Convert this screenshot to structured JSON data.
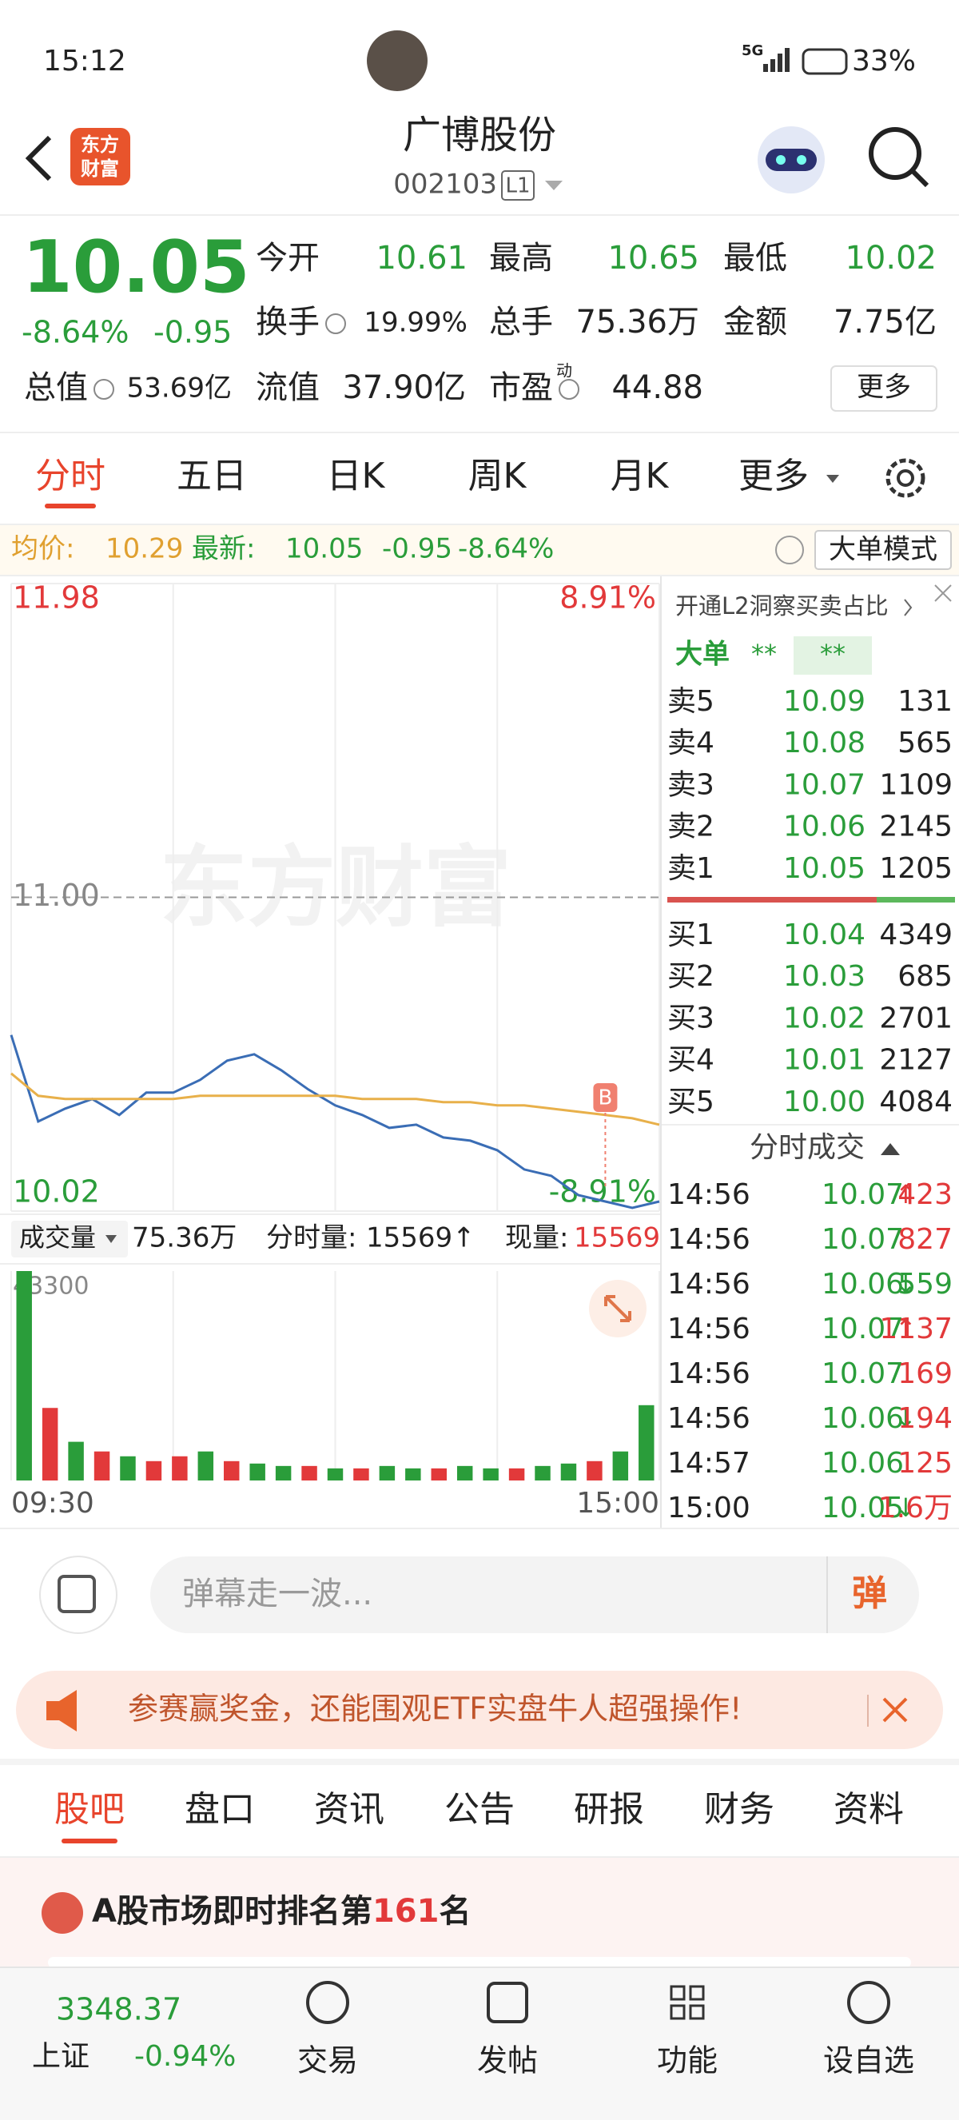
{
  "status_bar": {
    "time": "15:12",
    "network": "5G",
    "battery": "33%"
  },
  "header": {
    "logo_lines": [
      "东方",
      "财富"
    ],
    "title": "广博股份",
    "code": "002103",
    "level": "L1"
  },
  "quote": {
    "price": "10.05",
    "change_pct": "-8.64%",
    "change": "-0.95",
    "fields": [
      {
        "label": "今开",
        "value": "10.61",
        "color": "#2a9d3a"
      },
      {
        "label": "最高",
        "value": "10.65",
        "color": "#2a9d3a"
      },
      {
        "label": "最低",
        "value": "10.02",
        "color": "#2a9d3a"
      },
      {
        "label": "换手",
        "value": "19.99%"
      },
      {
        "label": "总手",
        "value": "75.36万"
      },
      {
        "label": "金额",
        "value": "7.75亿"
      },
      {
        "label": "总值",
        "value": "53.69亿"
      },
      {
        "label": "流值",
        "value": "37.90亿"
      },
      {
        "label": "市盈",
        "sup": "动",
        "value": "44.88"
      }
    ],
    "more": "更多"
  },
  "chart_tabs": [
    "分时",
    "五日",
    "日K",
    "周K",
    "月K",
    "更多"
  ],
  "info_line": {
    "avg_label": "均价:",
    "avg": "10.29",
    "latest_label": "最新:",
    "latest": "10.05",
    "change": "-0.95",
    "change_pct": "-8.64%",
    "mode": "大单模式"
  },
  "watermark": "东方财富",
  "chart_data": [
    {
      "type": "line",
      "annotation": "B",
      "series": [
        {
          "color": "#3a6db5",
          "values": [
            10.57,
            10.3,
            10.34,
            10.37,
            10.32,
            10.39,
            10.39,
            10.43,
            10.49,
            10.51,
            10.46,
            10.4,
            10.35,
            10.32,
            10.28,
            10.29,
            10.25,
            10.24,
            10.21,
            10.15,
            10.13,
            10.07,
            10.05,
            10.03,
            10.05
          ]
        },
        {
          "color": "#e8b04a",
          "values": [
            10.45,
            10.38,
            10.37,
            10.37,
            10.37,
            10.37,
            10.37,
            10.38,
            10.38,
            10.38,
            10.38,
            10.38,
            10.38,
            10.37,
            10.37,
            10.37,
            10.36,
            10.36,
            10.35,
            10.35,
            10.34,
            10.33,
            10.32,
            10.31,
            10.29
          ]
        }
      ],
      "ylim": [
        10.02,
        11.98
      ],
      "yticks": [
        11.98,
        {
          "value": 11,
          "label": "11.00"
        },
        10.02
      ],
      "y2lim": [
        -8.91,
        8.91
      ],
      "y2ticks": [
        {
          "value": 8.91,
          "label": "8.91%"
        },
        {
          "value": -8.91,
          "label": "-8.91%"
        }
      ],
      "grid": true
    },
    {
      "type": "bar",
      "categories": [
        "09:30",
        null,
        null,
        null,
        null,
        null,
        null,
        null,
        null,
        null,
        null,
        null,
        null,
        null,
        null,
        null,
        null,
        null,
        null,
        null,
        null,
        null,
        null,
        null,
        "15:00"
      ],
      "values": [
        43300,
        15000,
        8000,
        6000,
        5000,
        4000,
        5000,
        6000,
        4000,
        3500,
        3000,
        3000,
        2500,
        2500,
        3000,
        2500,
        2500,
        3000,
        2500,
        2500,
        3000,
        3500,
        4000,
        6000,
        15569
      ],
      "colors": [
        "#2a9d3a",
        "#e2393a",
        "#2a9d3a",
        "#e2393a",
        "#2a9d3a",
        "#e2393a",
        "#e2393a",
        "#2a9d3a",
        "#e2393a",
        "#2a9d3a",
        "#2a9d3a",
        "#e2393a",
        "#2a9d3a",
        "#e2393a",
        "#2a9d3a",
        "#2a9d3a",
        "#e2393a",
        "#2a9d3a",
        "#2a9d3a",
        "#e2393a",
        "#2a9d3a",
        "#2a9d3a",
        "#e2393a",
        "#2a9d3a",
        "#2a9d3a"
      ],
      "ylim": [
        0,
        43300
      ],
      "yticks": [
        43300
      ]
    }
  ],
  "volume_bar": {
    "label": "成交量",
    "total": "75.36万",
    "period_label": "分时量:",
    "period": "15569↑",
    "current_label": "现量:",
    "current": "15569"
  },
  "order_book": {
    "promo": "开通L2洞察买卖占比",
    "big_label": "大单",
    "big_a": "**",
    "big_b": "**",
    "asks": [
      {
        "label": "卖5",
        "price": "10.09",
        "volume": "131"
      },
      {
        "label": "卖4",
        "price": "10.08",
        "volume": "565"
      },
      {
        "label": "卖3",
        "price": "10.07",
        "volume": "1109"
      },
      {
        "label": "卖2",
        "price": "10.06",
        "volume": "2145"
      },
      {
        "label": "卖1",
        "price": "10.05",
        "volume": "1205"
      }
    ],
    "bids": [
      {
        "label": "买1",
        "price": "10.04",
        "volume": "4349"
      },
      {
        "label": "买2",
        "price": "10.03",
        "volume": "685"
      },
      {
        "label": "买3",
        "price": "10.02",
        "volume": "2701"
      },
      {
        "label": "买4",
        "price": "10.01",
        "volume": "2127"
      },
      {
        "label": "买5",
        "price": "10.00",
        "volume": "4084"
      }
    ]
  },
  "trades": {
    "title": "分时成交",
    "rows": [
      {
        "time": "14:56",
        "price": "10.07",
        "arrow": "↑",
        "volume": "423",
        "color": "#e2393a"
      },
      {
        "time": "14:56",
        "price": "10.07",
        "volume": "827",
        "color": "#e2393a"
      },
      {
        "time": "14:56",
        "price": "10.06",
        "arrow": "↓",
        "volume": "559",
        "color": "#2a9d3a"
      },
      {
        "time": "14:56",
        "price": "10.07",
        "arrow": "↑",
        "volume": "1137",
        "color": "#e2393a"
      },
      {
        "time": "14:56",
        "price": "10.07",
        "volume": "169",
        "color": "#e2393a"
      },
      {
        "time": "14:56",
        "price": "10.06",
        "arrow": "↓",
        "volume": "194",
        "color": "#e2393a"
      },
      {
        "time": "14:57",
        "price": "10.06",
        "volume": "125",
        "color": "#e2393a"
      },
      {
        "time": "15:00",
        "price": "10.05",
        "arrow": "↓",
        "volume": "1.6万",
        "color": "#e2393a"
      }
    ]
  },
  "comment": {
    "placeholder": "弹幕走一波...",
    "button": "弹"
  },
  "banner": {
    "text": "参赛赢奖金，还能围观ETF实盘牛人超强操作!"
  },
  "section_tabs": [
    "股吧",
    "盘口",
    "资讯",
    "公告",
    "研报",
    "财务",
    "资料"
  ],
  "ranking": {
    "prefix": "A股市场即时排名第",
    "rank": "161",
    "suffix": "名"
  },
  "bottom_nav": {
    "index_value": "3348.37",
    "index_name": "上证",
    "index_change": "-0.94%",
    "items": [
      "交易",
      "发帖",
      "功能",
      "设自选"
    ]
  }
}
